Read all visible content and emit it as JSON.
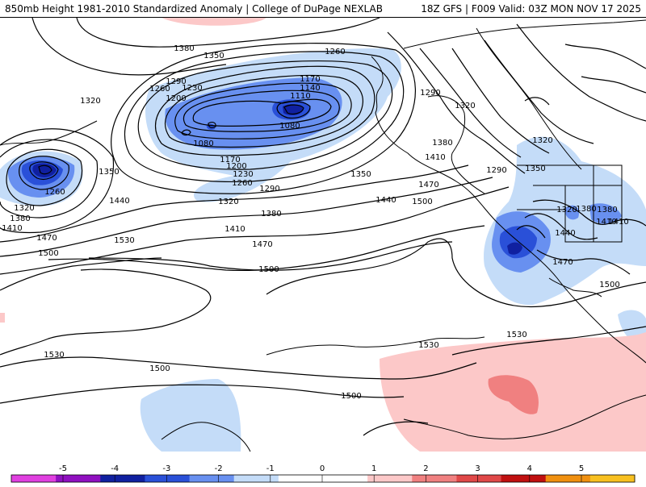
{
  "header": {
    "title_left": "850mb Height 1981-2010 Standardized Anomaly | College of DuPage NEXLAB",
    "title_right": "18Z GFS | F009 Valid: 03Z MON NOV 17 2025"
  },
  "map": {
    "field": "850mb geopotential height contours with standardized anomaly shading",
    "contour_labels": [
      {
        "text": "1380"
      },
      {
        "text": "1350"
      },
      {
        "text": "1260"
      },
      {
        "text": "1320"
      },
      {
        "text": "1290"
      },
      {
        "text": "1260"
      },
      {
        "text": "1230"
      },
      {
        "text": "1200"
      },
      {
        "text": "1170"
      },
      {
        "text": "1140"
      },
      {
        "text": "1110"
      },
      {
        "text": "1080"
      },
      {
        "text": "1080"
      },
      {
        "text": "1290"
      },
      {
        "text": "1320"
      },
      {
        "text": "1350"
      },
      {
        "text": "1260"
      },
      {
        "text": "1320"
      },
      {
        "text": "1380"
      },
      {
        "text": "1410"
      },
      {
        "text": "1470"
      },
      {
        "text": "1500"
      },
      {
        "text": "1440"
      },
      {
        "text": "1530"
      },
      {
        "text": "1170"
      },
      {
        "text": "1200"
      },
      {
        "text": "1230"
      },
      {
        "text": "1260"
      },
      {
        "text": "1290"
      },
      {
        "text": "1320"
      },
      {
        "text": "1380"
      },
      {
        "text": "1410"
      },
      {
        "text": "1470"
      },
      {
        "text": "1350"
      },
      {
        "text": "1440"
      },
      {
        "text": "1500"
      },
      {
        "text": "1470"
      },
      {
        "text": "1410"
      },
      {
        "text": "1380"
      },
      {
        "text": "1500"
      },
      {
        "text": "1530"
      },
      {
        "text": "1530"
      },
      {
        "text": "1500"
      },
      {
        "text": "1500"
      },
      {
        "text": "1290"
      },
      {
        "text": "1320"
      },
      {
        "text": "1380"
      },
      {
        "text": "1410"
      },
      {
        "text": "1350"
      },
      {
        "text": "1320"
      },
      {
        "text": "1380"
      },
      {
        "text": "1410"
      },
      {
        "text": "1440"
      },
      {
        "text": "1470"
      },
      {
        "text": "1500"
      },
      {
        "text": "1530"
      }
    ]
  },
  "colorbar": {
    "ticks": [
      "-5",
      "-4",
      "-3",
      "-2",
      "-1",
      "0",
      "1",
      "2",
      "3",
      "4",
      "5"
    ],
    "colors": [
      "#e040e0",
      "#9010c0",
      "#1020a0",
      "#2a50d8",
      "#6890f0",
      "#c4dcf8",
      "#ffffff",
      "#ffffff",
      "#fcc8c8",
      "#f08080",
      "#e04848",
      "#c01010",
      "#f09010",
      "#f8c020"
    ]
  }
}
